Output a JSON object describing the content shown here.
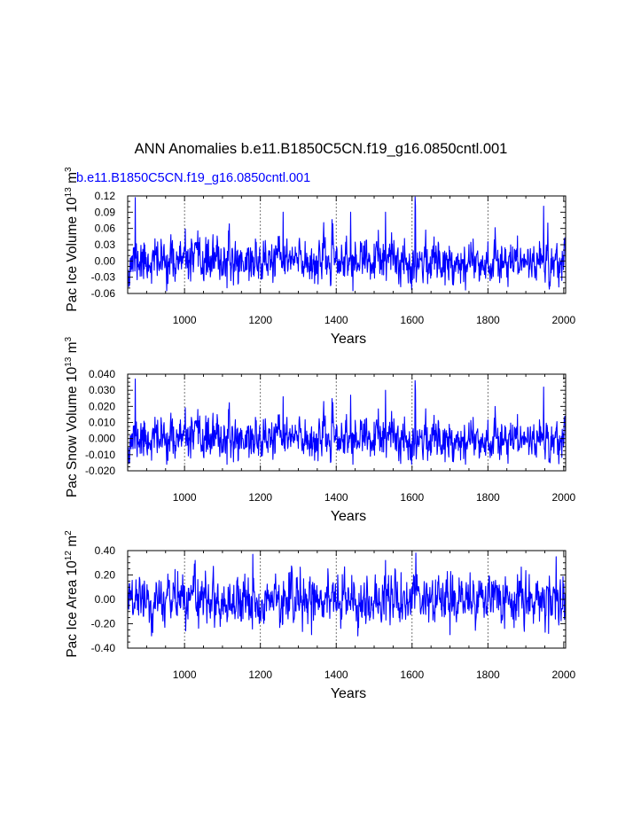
{
  "figure": {
    "title": "ANN Anomalies b.e11.B1850C5CN.f19_g16.0850cntl.001",
    "case_label": "b.e11.B1850C5CN.f19_g16.0850cntl.001",
    "line_color": "#0000ff"
  },
  "chart_data": [
    {
      "type": "line",
      "title": "",
      "ylabel_main": "Pac Ice Volume 10",
      "ylabel_exp": "13",
      "ylabel_unit": " m",
      "ylabel_unit_exp": "3",
      "xlabel": "Years",
      "xlim": [
        850,
        2005
      ],
      "ylim": [
        -0.06,
        0.12
      ],
      "xticks": [
        1000,
        1200,
        1400,
        1600,
        1800,
        2000
      ],
      "yticks": [
        -0.06,
        -0.03,
        0.0,
        0.03,
        0.06,
        0.09,
        0.12
      ],
      "ytick_labels": [
        "-0.06",
        "-0.03",
        "0.00",
        "0.03",
        "0.06",
        "0.09",
        "0.12"
      ],
      "ymax_label": "0.12",
      "yminor_step": 0.01,
      "gridlines_x": [
        1000,
        1200,
        1400,
        1600,
        1800
      ],
      "series": [
        {
          "name": "b.e11.B1850C5CN.f19_g16.0850cntl.001",
          "x_start": 850,
          "x_end": 2005,
          "std": 0.02,
          "ar": 0.3,
          "seed": 11,
          "clip": [
            -0.055,
            0.117
          ],
          "spikes": [
            [
              855,
              -0.045
            ],
            [
              870,
              0.117
            ],
            [
              1608,
              0.118
            ],
            [
              1609,
              0.102
            ],
            [
              1947,
              0.101
            ],
            [
              1962,
              -0.052
            ],
            [
              1958,
              0.07
            ],
            [
              1530,
              0.09
            ],
            [
              1438,
              0.09
            ],
            [
              1260,
              0.09
            ]
          ]
        }
      ]
    },
    {
      "type": "line",
      "title": "",
      "ylabel_main": "Pac Snow Volume 10",
      "ylabel_exp": "13",
      "ylabel_unit": " m",
      "ylabel_unit_exp": "3",
      "xlabel": "Years",
      "xlim": [
        850,
        2005
      ],
      "ylim": [
        -0.02,
        0.04
      ],
      "xticks": [
        1000,
        1200,
        1400,
        1600,
        1800,
        2000
      ],
      "yticks": [
        -0.02,
        -0.01,
        0.0,
        0.01,
        0.02,
        0.03,
        0.04
      ],
      "ytick_labels": [
        "-0.020",
        "-0.010",
        "0.000",
        "0.010",
        "0.020",
        "0.030",
        "0.040"
      ],
      "yminor_step": 0.0025,
      "gridlines_x": [
        1000,
        1200,
        1400,
        1600,
        1800
      ],
      "series": [
        {
          "name": "b.e11.B1850C5CN.f19_g16.0850cntl.001",
          "x_start": 850,
          "x_end": 2005,
          "std": 0.0065,
          "ar": 0.3,
          "seed": 11,
          "clip": [
            -0.016,
            0.0375
          ],
          "spikes": [
            [
              855,
              -0.015
            ],
            [
              870,
              0.037
            ],
            [
              1608,
              0.036
            ],
            [
              1609,
              0.03
            ],
            [
              1947,
              0.032
            ],
            [
              1962,
              -0.014
            ],
            [
              1530,
              0.03
            ],
            [
              1438,
              0.027
            ],
            [
              1260,
              0.026
            ]
          ]
        }
      ]
    },
    {
      "type": "line",
      "title": "",
      "ylabel_main": "Pac Ice Area 10",
      "ylabel_exp": "12",
      "ylabel_unit": " m",
      "ylabel_unit_exp": "2",
      "xlabel": "Years",
      "xlim": [
        850,
        2005
      ],
      "ylim": [
        -0.4,
        0.4
      ],
      "xticks": [
        1000,
        1200,
        1400,
        1600,
        1800,
        2000
      ],
      "yticks": [
        -0.4,
        -0.2,
        0.0,
        0.2,
        0.4
      ],
      "ytick_labels": [
        "-0.40",
        "-0.20",
        "0.00",
        "0.20",
        "0.40"
      ],
      "yminor_step": 0.05,
      "gridlines_x": [
        1000,
        1200,
        1400,
        1600,
        1800
      ],
      "series": [
        {
          "name": "b.e11.B1850C5CN.f19_g16.0850cntl.001",
          "x_start": 850,
          "x_end": 2005,
          "std": 0.1,
          "ar": 0.35,
          "seed": 29,
          "clip": [
            -0.3,
            0.39
          ],
          "spikes": [
            [
              1180,
              0.37
            ],
            [
              1610,
              0.38
            ],
            [
              1980,
              0.35
            ],
            [
              1335,
              -0.29
            ],
            [
              1960,
              -0.28
            ],
            [
              1700,
              -0.29
            ],
            [
              1530,
              0.32
            ],
            [
              1028,
              0.32
            ]
          ]
        }
      ]
    }
  ]
}
